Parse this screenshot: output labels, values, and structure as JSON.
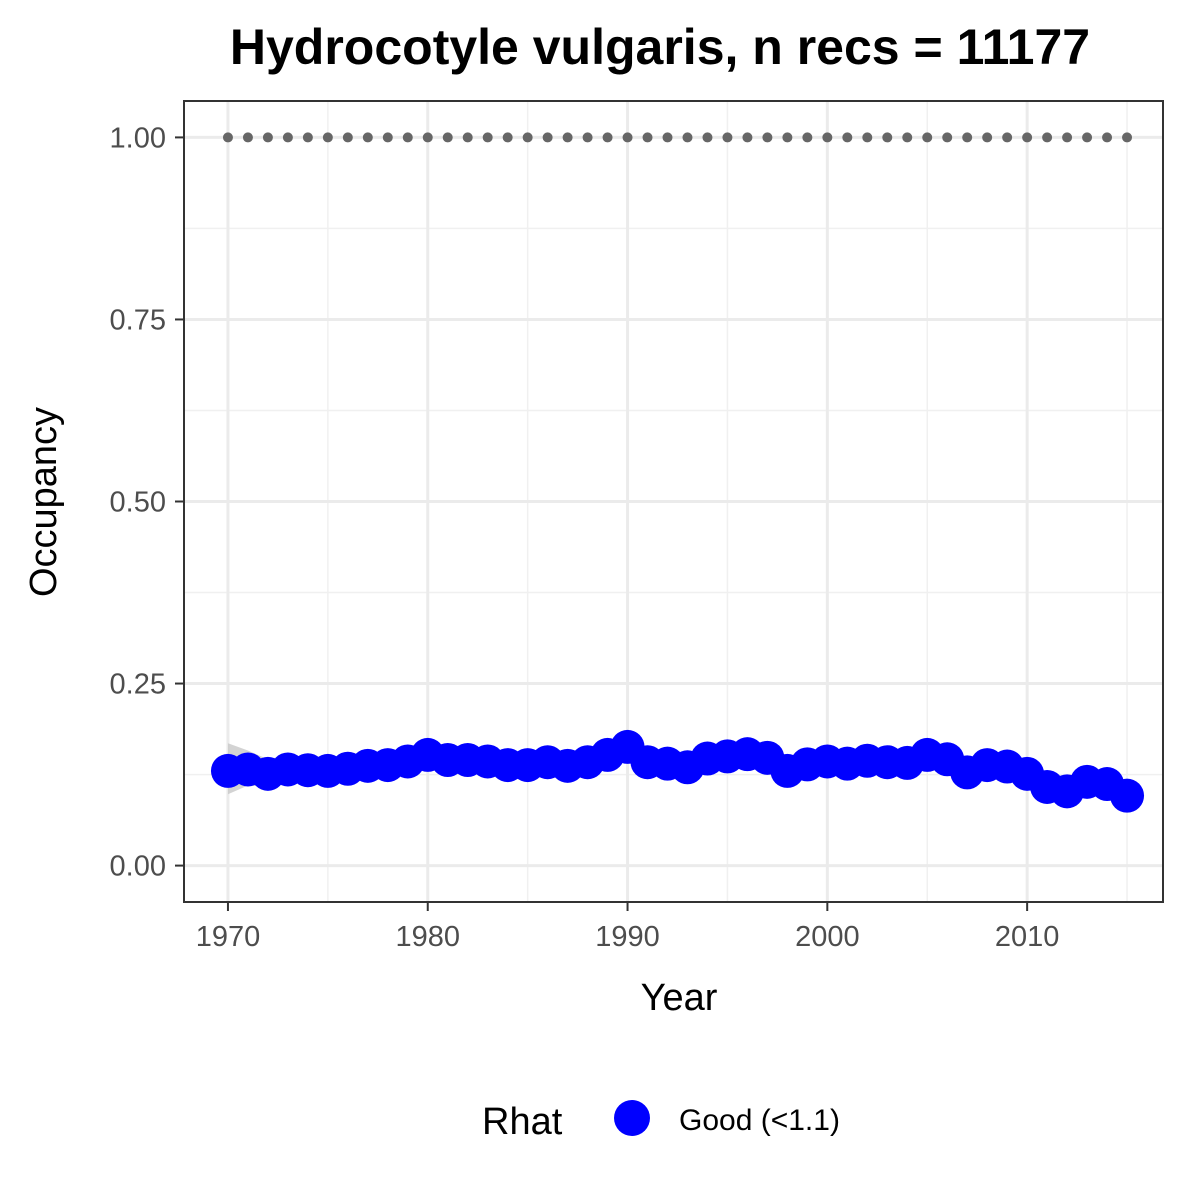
{
  "chart_data": {
    "type": "line",
    "title": "Hydrocotyle vulgaris, n recs = 11177",
    "xlabel": "Year",
    "ylabel": "Occupancy",
    "xlim": [
      1967.8,
      2016.8
    ],
    "ylim": [
      -0.05,
      1.05
    ],
    "x_ticks": [
      1970,
      1980,
      1990,
      2000,
      2010
    ],
    "x_tick_labels": [
      "1970",
      "1980",
      "1990",
      "2000",
      "2010"
    ],
    "y_ticks": [
      0,
      0.25,
      0.5,
      0.75,
      1.0
    ],
    "y_tick_labels": [
      "0.00",
      "0.25",
      "0.50",
      "0.75",
      "1.00"
    ],
    "x": [
      1970,
      1971,
      1972,
      1973,
      1974,
      1975,
      1976,
      1977,
      1978,
      1979,
      1980,
      1981,
      1982,
      1983,
      1984,
      1985,
      1986,
      1987,
      1988,
      1989,
      1990,
      1991,
      1992,
      1993,
      1994,
      1995,
      1996,
      1997,
      1998,
      1999,
      2000,
      2001,
      2002,
      2003,
      2004,
      2005,
      2006,
      2007,
      2008,
      2009,
      2010,
      2011,
      2012,
      2013,
      2014,
      2015
    ],
    "series": [
      {
        "role": "occupancy",
        "values": [
          0.13,
          0.132,
          0.126,
          0.132,
          0.131,
          0.13,
          0.133,
          0.137,
          0.138,
          0.143,
          0.152,
          0.145,
          0.145,
          0.143,
          0.138,
          0.138,
          0.142,
          0.137,
          0.142,
          0.152,
          0.163,
          0.142,
          0.14,
          0.135,
          0.147,
          0.15,
          0.153,
          0.148,
          0.13,
          0.139,
          0.143,
          0.14,
          0.144,
          0.142,
          0.141,
          0.152,
          0.146,
          0.128,
          0.138,
          0.136,
          0.126,
          0.108,
          0.102,
          0.115,
          0.112,
          0.096
        ],
        "lower": [
          0.098,
          0.11,
          0.108,
          0.114,
          0.114,
          0.114,
          0.118,
          0.122,
          0.123,
          0.128,
          0.136,
          0.13,
          0.131,
          0.129,
          0.124,
          0.124,
          0.128,
          0.123,
          0.128,
          0.138,
          0.148,
          0.128,
          0.126,
          0.121,
          0.133,
          0.136,
          0.139,
          0.134,
          0.116,
          0.125,
          0.129,
          0.126,
          0.13,
          0.128,
          0.127,
          0.138,
          0.132,
          0.114,
          0.124,
          0.122,
          0.112,
          0.094,
          0.088,
          0.101,
          0.098,
          0.082
        ],
        "upper": [
          0.168,
          0.158,
          0.146,
          0.152,
          0.149,
          0.148,
          0.15,
          0.153,
          0.154,
          0.159,
          0.168,
          0.161,
          0.16,
          0.158,
          0.153,
          0.153,
          0.157,
          0.152,
          0.157,
          0.167,
          0.178,
          0.157,
          0.155,
          0.15,
          0.162,
          0.165,
          0.168,
          0.163,
          0.145,
          0.154,
          0.158,
          0.155,
          0.159,
          0.157,
          0.156,
          0.167,
          0.161,
          0.143,
          0.153,
          0.151,
          0.141,
          0.123,
          0.117,
          0.13,
          0.127,
          0.111
        ],
        "color": "#0000ff"
      },
      {
        "role": "reference",
        "values": [
          1,
          1,
          1,
          1,
          1,
          1,
          1,
          1,
          1,
          1,
          1,
          1,
          1,
          1,
          1,
          1,
          1,
          1,
          1,
          1,
          1,
          1,
          1,
          1,
          1,
          1,
          1,
          1,
          1,
          1,
          1,
          1,
          1,
          1,
          1,
          1,
          1,
          1,
          1,
          1,
          1,
          1,
          1,
          1,
          1,
          1
        ],
        "color": "#666666",
        "style": "dotted"
      }
    ],
    "grid": true,
    "legend": {
      "placement": "bottom",
      "title": "Rhat",
      "entries": [
        {
          "label": "Good (<1.1)",
          "color": "#0000ff"
        }
      ]
    },
    "band_color": "#c8c8c8"
  }
}
